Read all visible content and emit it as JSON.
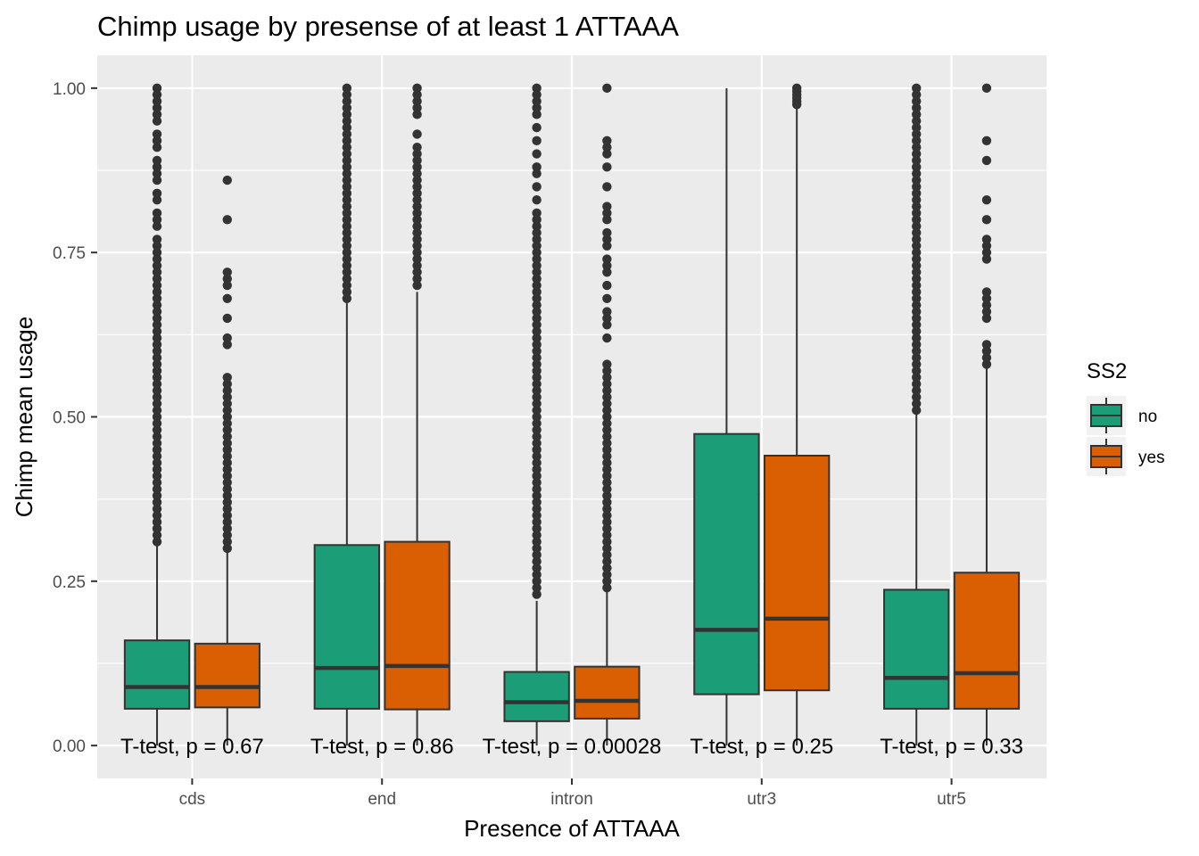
{
  "chart_data": {
    "type": "box",
    "title": "Chimp usage by presense of at least 1  ATTAAA",
    "xlabel": "Presence of ATTAAA",
    "ylabel": "Chimp mean usage",
    "ylim": [
      -0.05,
      1.05
    ],
    "yticks": [
      0.0,
      0.25,
      0.5,
      0.75,
      1.0
    ],
    "ytick_labels": [
      "0.00",
      "0.25",
      "0.50",
      "0.75",
      "1.00"
    ],
    "categories": [
      "cds",
      "end",
      "intron",
      "utr3",
      "utr5"
    ],
    "legend": {
      "title": "SS2",
      "position": "right",
      "entries": [
        {
          "label": "no",
          "color": "#1b9e77"
        },
        {
          "label": "yes",
          "color": "#d95f02"
        }
      ]
    },
    "series": [
      {
        "name": "no",
        "color": "#1b9e77",
        "boxes": [
          {
            "category": "cds",
            "whisker_low": 0.0,
            "q1": 0.056,
            "median": 0.089,
            "q3": 0.16,
            "whisker_high": 0.31,
            "outliers": [
              0.31,
              0.32,
              0.33,
              0.34,
              0.35,
              0.36,
              0.37,
              0.38,
              0.39,
              0.4,
              0.41,
              0.42,
              0.43,
              0.44,
              0.45,
              0.46,
              0.47,
              0.48,
              0.49,
              0.5,
              0.51,
              0.52,
              0.53,
              0.54,
              0.55,
              0.56,
              0.57,
              0.58,
              0.59,
              0.6,
              0.61,
              0.62,
              0.63,
              0.64,
              0.65,
              0.66,
              0.67,
              0.68,
              0.69,
              0.7,
              0.71,
              0.72,
              0.73,
              0.74,
              0.75,
              0.76,
              0.77,
              0.79,
              0.8,
              0.81,
              0.83,
              0.84,
              0.86,
              0.87,
              0.88,
              0.89,
              0.91,
              0.92,
              0.93,
              0.95,
              0.96,
              0.97,
              0.98,
              0.99,
              1.0
            ]
          },
          {
            "category": "end",
            "whisker_low": 0.0,
            "q1": 0.056,
            "median": 0.118,
            "q3": 0.305,
            "whisker_high": 0.675,
            "outliers": [
              0.68,
              0.69,
              0.7,
              0.71,
              0.72,
              0.73,
              0.74,
              0.75,
              0.76,
              0.77,
              0.78,
              0.79,
              0.8,
              0.81,
              0.82,
              0.83,
              0.84,
              0.85,
              0.86,
              0.87,
              0.88,
              0.89,
              0.9,
              0.91,
              0.92,
              0.93,
              0.94,
              0.95,
              0.96,
              0.97,
              0.98,
              0.99,
              1.0
            ]
          },
          {
            "category": "intron",
            "whisker_low": 0.0,
            "q1": 0.037,
            "median": 0.066,
            "q3": 0.112,
            "whisker_high": 0.22,
            "outliers": [
              0.23,
              0.24,
              0.25,
              0.26,
              0.27,
              0.28,
              0.29,
              0.3,
              0.31,
              0.32,
              0.33,
              0.34,
              0.35,
              0.36,
              0.37,
              0.38,
              0.39,
              0.4,
              0.41,
              0.42,
              0.43,
              0.44,
              0.45,
              0.46,
              0.47,
              0.48,
              0.49,
              0.5,
              0.51,
              0.52,
              0.53,
              0.54,
              0.55,
              0.56,
              0.57,
              0.58,
              0.59,
              0.6,
              0.61,
              0.62,
              0.63,
              0.64,
              0.65,
              0.66,
              0.67,
              0.68,
              0.69,
              0.7,
              0.71,
              0.72,
              0.73,
              0.74,
              0.75,
              0.76,
              0.77,
              0.78,
              0.79,
              0.8,
              0.81,
              0.83,
              0.85,
              0.87,
              0.88,
              0.9,
              0.92,
              0.94,
              0.96,
              0.97,
              0.98,
              0.99,
              1.0
            ]
          },
          {
            "category": "utr3",
            "whisker_low": 0.0,
            "q1": 0.078,
            "median": 0.176,
            "q3": 0.474,
            "whisker_high": 1.0,
            "outliers": []
          },
          {
            "category": "utr5",
            "whisker_low": 0.0,
            "q1": 0.056,
            "median": 0.103,
            "q3": 0.237,
            "whisker_high": 0.51,
            "outliers": [
              0.51,
              0.52,
              0.53,
              0.54,
              0.55,
              0.56,
              0.57,
              0.58,
              0.59,
              0.6,
              0.61,
              0.62,
              0.63,
              0.64,
              0.65,
              0.66,
              0.67,
              0.68,
              0.69,
              0.7,
              0.71,
              0.72,
              0.73,
              0.74,
              0.75,
              0.76,
              0.77,
              0.78,
              0.79,
              0.8,
              0.81,
              0.82,
              0.83,
              0.84,
              0.85,
              0.86,
              0.87,
              0.88,
              0.89,
              0.9,
              0.91,
              0.92,
              0.93,
              0.94,
              0.95,
              0.96,
              0.97,
              0.98,
              0.99,
              1.0
            ]
          }
        ]
      },
      {
        "name": "yes",
        "color": "#d95f02",
        "boxes": [
          {
            "category": "cds",
            "whisker_low": 0.0,
            "q1": 0.058,
            "median": 0.089,
            "q3": 0.155,
            "whisker_high": 0.3,
            "outliers": [
              0.3,
              0.31,
              0.32,
              0.33,
              0.34,
              0.35,
              0.36,
              0.37,
              0.38,
              0.39,
              0.4,
              0.41,
              0.42,
              0.43,
              0.44,
              0.45,
              0.46,
              0.47,
              0.48,
              0.49,
              0.5,
              0.51,
              0.52,
              0.53,
              0.54,
              0.55,
              0.56,
              0.61,
              0.62,
              0.65,
              0.68,
              0.7,
              0.71,
              0.72,
              0.8,
              0.86
            ]
          },
          {
            "category": "end",
            "whisker_low": 0.0,
            "q1": 0.055,
            "median": 0.121,
            "q3": 0.31,
            "whisker_high": 0.69,
            "outliers": [
              0.7,
              0.71,
              0.72,
              0.73,
              0.74,
              0.75,
              0.76,
              0.77,
              0.78,
              0.79,
              0.8,
              0.81,
              0.82,
              0.83,
              0.84,
              0.85,
              0.86,
              0.87,
              0.88,
              0.89,
              0.9,
              0.91,
              0.93,
              0.96,
              0.97,
              0.98,
              0.99,
              1.0
            ]
          },
          {
            "category": "intron",
            "whisker_low": 0.0,
            "q1": 0.041,
            "median": 0.068,
            "q3": 0.12,
            "whisker_high": 0.235,
            "outliers": [
              0.24,
              0.25,
              0.26,
              0.27,
              0.28,
              0.29,
              0.3,
              0.31,
              0.32,
              0.33,
              0.34,
              0.35,
              0.36,
              0.37,
              0.38,
              0.39,
              0.4,
              0.41,
              0.42,
              0.43,
              0.44,
              0.45,
              0.46,
              0.47,
              0.48,
              0.49,
              0.5,
              0.51,
              0.52,
              0.53,
              0.54,
              0.55,
              0.56,
              0.57,
              0.58,
              0.62,
              0.64,
              0.65,
              0.66,
              0.68,
              0.7,
              0.72,
              0.73,
              0.74,
              0.76,
              0.77,
              0.78,
              0.8,
              0.81,
              0.82,
              0.85,
              0.88,
              0.9,
              0.91,
              0.92,
              1.0
            ]
          },
          {
            "category": "utr3",
            "whisker_low": 0.0,
            "q1": 0.084,
            "median": 0.193,
            "q3": 0.441,
            "whisker_high": 0.975,
            "outliers": [
              0.975,
              0.98,
              0.985,
              0.99,
              0.995,
              1.0
            ]
          },
          {
            "category": "utr5",
            "whisker_low": 0.0,
            "q1": 0.056,
            "median": 0.11,
            "q3": 0.263,
            "whisker_high": 0.575,
            "outliers": [
              0.58,
              0.59,
              0.6,
              0.61,
              0.65,
              0.66,
              0.67,
              0.68,
              0.69,
              0.74,
              0.75,
              0.76,
              0.77,
              0.8,
              0.83,
              0.89,
              0.92,
              1.0
            ]
          }
        ]
      }
    ],
    "annotations": [
      {
        "category": "cds",
        "y": 0.0,
        "text": "T-test, p = 0.67"
      },
      {
        "category": "end",
        "y": 0.0,
        "text": "T-test, p = 0.86"
      },
      {
        "category": "intron",
        "y": 0.0,
        "text": "T-test, p = 0.00028"
      },
      {
        "category": "utr3",
        "y": 0.0,
        "text": "T-test, p = 0.25"
      },
      {
        "category": "utr5",
        "y": 0.0,
        "text": "T-test, p = 0.33"
      }
    ]
  }
}
